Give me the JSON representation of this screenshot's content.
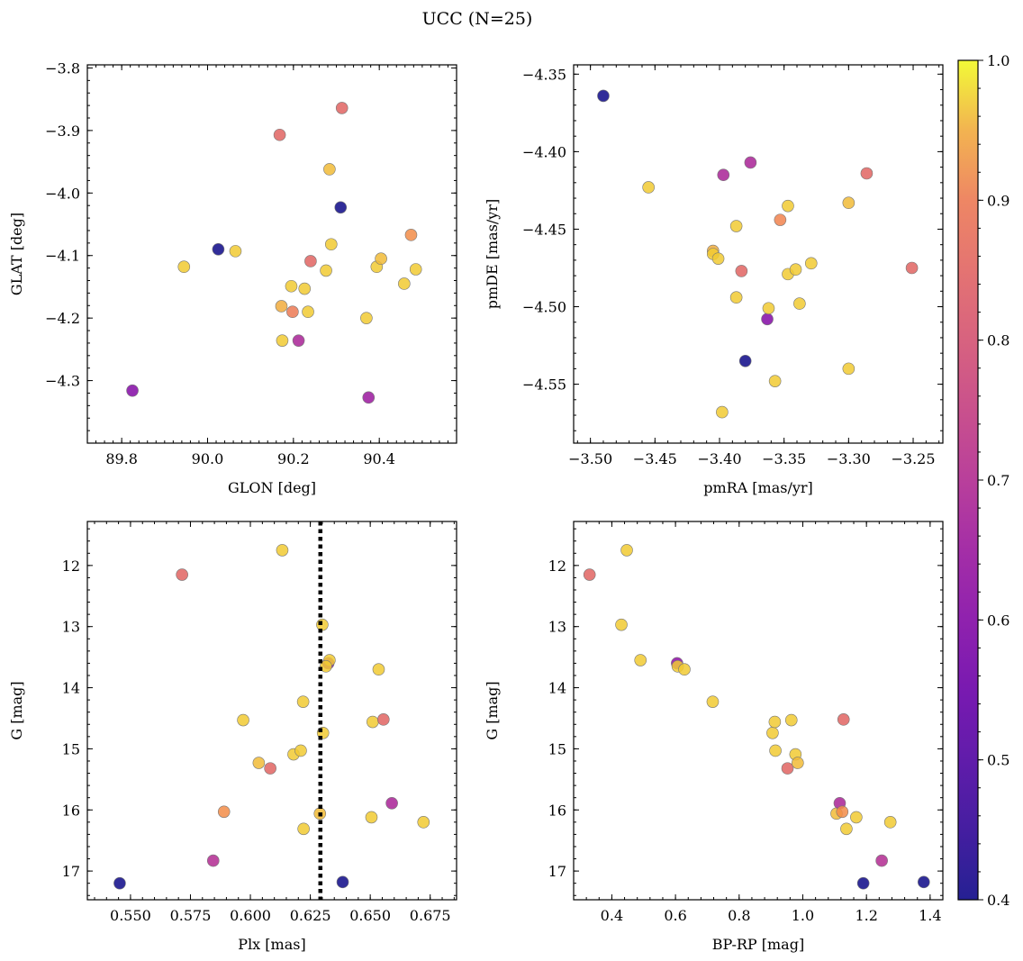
{
  "title": "UCC (N=25)",
  "colors": {
    "colormap": "plasma",
    "marker_edge": "#777777",
    "axis": "#000000",
    "median_line": "#000000"
  },
  "colorbar": {
    "range": [
      0.4,
      1.0
    ],
    "ticks": [
      "0.4",
      "0.5",
      "0.6",
      "0.7",
      "0.8",
      "0.9",
      "1.0"
    ]
  },
  "chart_data": [
    {
      "type": "scatter",
      "id": "glon-glat",
      "xlabel": "GLON [deg]",
      "ylabel": "GLAT [deg]",
      "xlim": [
        89.72,
        90.58
      ],
      "ylim": [
        -4.4,
        -3.795
      ],
      "y_inverted": false,
      "xticks": [
        {
          "v": 89.8,
          "label": "89.8"
        },
        {
          "v": 90.0,
          "label": "90.0"
        },
        {
          "v": 90.2,
          "label": "90.2"
        },
        {
          "v": 90.4,
          "label": "90.4"
        }
      ],
      "yticks": [
        {
          "v": -3.8,
          "label": "−3.8"
        },
        {
          "v": -3.9,
          "label": "−3.9"
        },
        {
          "v": -4.0,
          "label": "−4.0"
        },
        {
          "v": -4.1,
          "label": "−4.1"
        },
        {
          "v": -4.2,
          "label": "−4.2"
        },
        {
          "v": -4.3,
          "label": "−4.3"
        }
      ],
      "xminor": 0.02,
      "yminor": 0.02,
      "points": [
        {
          "x": 89.825,
          "y": -4.316,
          "c": 0.6
        },
        {
          "x": 89.945,
          "y": -4.118,
          "c": 0.97
        },
        {
          "x": 90.025,
          "y": -4.09,
          "c": 0.38
        },
        {
          "x": 90.065,
          "y": -4.093,
          "c": 0.97
        },
        {
          "x": 90.168,
          "y": -3.907,
          "c": 0.85
        },
        {
          "x": 90.172,
          "y": -4.181,
          "c": 0.95
        },
        {
          "x": 90.174,
          "y": -4.236,
          "c": 0.97
        },
        {
          "x": 90.195,
          "y": -4.149,
          "c": 0.97
        },
        {
          "x": 90.198,
          "y": -4.19,
          "c": 0.9
        },
        {
          "x": 90.212,
          "y": -4.236,
          "c": 0.68
        },
        {
          "x": 90.226,
          "y": -4.153,
          "c": 0.97
        },
        {
          "x": 90.234,
          "y": -4.19,
          "c": 0.97
        },
        {
          "x": 90.24,
          "y": -4.109,
          "c": 0.85
        },
        {
          "x": 90.276,
          "y": -4.124,
          "c": 0.97
        },
        {
          "x": 90.284,
          "y": -3.962,
          "c": 0.96
        },
        {
          "x": 90.288,
          "y": -4.082,
          "c": 0.97
        },
        {
          "x": 90.31,
          "y": -4.023,
          "c": 0.38
        },
        {
          "x": 90.313,
          "y": -3.864,
          "c": 0.85
        },
        {
          "x": 90.37,
          "y": -4.2,
          "c": 0.97
        },
        {
          "x": 90.375,
          "y": -4.327,
          "c": 0.65
        },
        {
          "x": 90.394,
          "y": -4.118,
          "c": 0.97
        },
        {
          "x": 90.404,
          "y": -4.105,
          "c": 0.96
        },
        {
          "x": 90.458,
          "y": -4.145,
          "c": 0.97
        },
        {
          "x": 90.474,
          "y": -4.067,
          "c": 0.93
        },
        {
          "x": 90.485,
          "y": -4.122,
          "c": 0.97
        }
      ]
    },
    {
      "type": "scatter",
      "id": "pmra-pmde",
      "xlabel": "pmRA [mas/yr]",
      "ylabel": "pmDE [mas/yr]",
      "xlim": [
        -3.513,
        -3.227
      ],
      "ylim": [
        -4.588,
        -4.344
      ],
      "y_inverted": false,
      "xticks": [
        {
          "v": -3.5,
          "label": "−3.50"
        },
        {
          "v": -3.45,
          "label": "−3.45"
        },
        {
          "v": -3.4,
          "label": "−3.40"
        },
        {
          "v": -3.35,
          "label": "−3.35"
        },
        {
          "v": -3.3,
          "label": "−3.30"
        },
        {
          "v": -3.25,
          "label": "−3.25"
        }
      ],
      "yticks": [
        {
          "v": -4.35,
          "label": "−4.35"
        },
        {
          "v": -4.4,
          "label": "−4.40"
        },
        {
          "v": -4.45,
          "label": "−4.45"
        },
        {
          "v": -4.5,
          "label": "−4.50"
        },
        {
          "v": -4.55,
          "label": "−4.55"
        }
      ],
      "xminor": 0.01,
      "yminor": 0.01,
      "points": [
        {
          "x": -3.49,
          "y": -4.364,
          "c": 0.38
        },
        {
          "x": -3.455,
          "y": -4.423,
          "c": 0.97
        },
        {
          "x": -3.405,
          "y": -4.464,
          "c": 0.95
        },
        {
          "x": -3.405,
          "y": -4.466,
          "c": 0.97
        },
        {
          "x": -3.401,
          "y": -4.469,
          "c": 0.97
        },
        {
          "x": -3.398,
          "y": -4.568,
          "c": 0.97
        },
        {
          "x": -3.397,
          "y": -4.415,
          "c": 0.68
        },
        {
          "x": -3.387,
          "y": -4.448,
          "c": 0.97
        },
        {
          "x": -3.387,
          "y": -4.494,
          "c": 0.97
        },
        {
          "x": -3.383,
          "y": -4.477,
          "c": 0.85
        },
        {
          "x": -3.38,
          "y": -4.535,
          "c": 0.38
        },
        {
          "x": -3.376,
          "y": -4.407,
          "c": 0.68
        },
        {
          "x": -3.363,
          "y": -4.508,
          "c": 0.6
        },
        {
          "x": -3.362,
          "y": -4.501,
          "c": 0.97
        },
        {
          "x": -3.357,
          "y": -4.548,
          "c": 0.97
        },
        {
          "x": -3.353,
          "y": -4.444,
          "c": 0.92
        },
        {
          "x": -3.347,
          "y": -4.435,
          "c": 0.97
        },
        {
          "x": -3.347,
          "y": -4.479,
          "c": 0.97
        },
        {
          "x": -3.341,
          "y": -4.476,
          "c": 0.97
        },
        {
          "x": -3.338,
          "y": -4.498,
          "c": 0.97
        },
        {
          "x": -3.329,
          "y": -4.472,
          "c": 0.97
        },
        {
          "x": -3.3,
          "y": -4.433,
          "c": 0.96
        },
        {
          "x": -3.3,
          "y": -4.54,
          "c": 0.97
        },
        {
          "x": -3.286,
          "y": -4.414,
          "c": 0.85
        },
        {
          "x": -3.251,
          "y": -4.475,
          "c": 0.85
        }
      ]
    },
    {
      "type": "scatter",
      "id": "plx-g",
      "xlabel": "Plx [mas]",
      "ylabel": "G [mag]",
      "xlim": [
        0.532,
        0.686
      ],
      "ylim": [
        11.28,
        17.47
      ],
      "y_inverted": true,
      "vline": {
        "x": 0.6292,
        "style": "dotted"
      },
      "xticks": [
        {
          "v": 0.55,
          "label": "0.550"
        },
        {
          "v": 0.575,
          "label": "0.575"
        },
        {
          "v": 0.6,
          "label": "0.600"
        },
        {
          "v": 0.625,
          "label": "0.625"
        },
        {
          "v": 0.65,
          "label": "0.650"
        },
        {
          "v": 0.675,
          "label": "0.675"
        }
      ],
      "yticks": [
        {
          "v": 12,
          "label": "12"
        },
        {
          "v": 13,
          "label": "13"
        },
        {
          "v": 14,
          "label": "14"
        },
        {
          "v": 15,
          "label": "15"
        },
        {
          "v": 16,
          "label": "16"
        },
        {
          "v": 17,
          "label": "17"
        }
      ],
      "xminor": 0.005,
      "yminor": 0.2,
      "points": [
        {
          "x": 0.5455,
          "y": 17.2,
          "c": 0.38
        },
        {
          "x": 0.5715,
          "y": 12.15,
          "c": 0.85
        },
        {
          "x": 0.5845,
          "y": 16.83,
          "c": 0.7
        },
        {
          "x": 0.589,
          "y": 16.03,
          "c": 0.93
        },
        {
          "x": 0.597,
          "y": 14.53,
          "c": 0.97
        },
        {
          "x": 0.6035,
          "y": 15.23,
          "c": 0.96
        },
        {
          "x": 0.6083,
          "y": 15.32,
          "c": 0.85
        },
        {
          "x": 0.6133,
          "y": 11.75,
          "c": 0.97
        },
        {
          "x": 0.618,
          "y": 15.09,
          "c": 0.97
        },
        {
          "x": 0.621,
          "y": 15.03,
          "c": 0.97
        },
        {
          "x": 0.622,
          "y": 14.23,
          "c": 0.97
        },
        {
          "x": 0.6222,
          "y": 16.31,
          "c": 0.97
        },
        {
          "x": 0.629,
          "y": 16.06,
          "c": 0.96
        },
        {
          "x": 0.63,
          "y": 12.97,
          "c": 0.97
        },
        {
          "x": 0.6303,
          "y": 14.74,
          "c": 0.97
        },
        {
          "x": 0.6325,
          "y": 13.6,
          "c": 0.62
        },
        {
          "x": 0.633,
          "y": 13.55,
          "c": 0.97
        },
        {
          "x": 0.6315,
          "y": 13.65,
          "c": 0.97
        },
        {
          "x": 0.6385,
          "y": 17.18,
          "c": 0.38
        },
        {
          "x": 0.6505,
          "y": 16.12,
          "c": 0.97
        },
        {
          "x": 0.651,
          "y": 14.56,
          "c": 0.97
        },
        {
          "x": 0.6535,
          "y": 13.7,
          "c": 0.97
        },
        {
          "x": 0.6555,
          "y": 14.52,
          "c": 0.85
        },
        {
          "x": 0.659,
          "y": 15.89,
          "c": 0.68
        },
        {
          "x": 0.6722,
          "y": 16.2,
          "c": 0.97
        }
      ]
    },
    {
      "type": "scatter",
      "id": "bprp-g",
      "xlabel": "BP-RP [mag]",
      "ylabel": "G [mag]",
      "xlim": [
        0.28,
        1.44
      ],
      "ylim": [
        11.28,
        17.47
      ],
      "y_inverted": true,
      "xticks": [
        {
          "v": 0.4,
          "label": "0.4"
        },
        {
          "v": 0.6,
          "label": "0.6"
        },
        {
          "v": 0.8,
          "label": "0.8"
        },
        {
          "v": 1.0,
          "label": "1.0"
        },
        {
          "v": 1.2,
          "label": "1.2"
        },
        {
          "v": 1.4,
          "label": "1.4"
        }
      ],
      "yticks": [
        {
          "v": 12,
          "label": "12"
        },
        {
          "v": 13,
          "label": "13"
        },
        {
          "v": 14,
          "label": "14"
        },
        {
          "v": 15,
          "label": "15"
        },
        {
          "v": 16,
          "label": "16"
        },
        {
          "v": 17,
          "label": "17"
        }
      ],
      "xminor": 0.04,
      "yminor": 0.2,
      "points": [
        {
          "x": 0.33,
          "y": 12.15,
          "c": 0.85
        },
        {
          "x": 0.43,
          "y": 12.97,
          "c": 0.97
        },
        {
          "x": 0.447,
          "y": 11.75,
          "c": 0.97
        },
        {
          "x": 0.49,
          "y": 13.55,
          "c": 0.97
        },
        {
          "x": 0.605,
          "y": 13.6,
          "c": 0.62
        },
        {
          "x": 0.607,
          "y": 13.65,
          "c": 0.97
        },
        {
          "x": 0.628,
          "y": 13.7,
          "c": 0.97
        },
        {
          "x": 0.717,
          "y": 14.23,
          "c": 0.97
        },
        {
          "x": 0.905,
          "y": 14.74,
          "c": 0.97
        },
        {
          "x": 0.912,
          "y": 14.56,
          "c": 0.97
        },
        {
          "x": 0.914,
          "y": 15.03,
          "c": 0.97
        },
        {
          "x": 0.952,
          "y": 15.32,
          "c": 0.85
        },
        {
          "x": 0.964,
          "y": 14.53,
          "c": 0.97
        },
        {
          "x": 0.977,
          "y": 15.09,
          "c": 0.97
        },
        {
          "x": 0.984,
          "y": 15.23,
          "c": 0.96
        },
        {
          "x": 1.106,
          "y": 16.06,
          "c": 0.96
        },
        {
          "x": 1.116,
          "y": 15.89,
          "c": 0.68
        },
        {
          "x": 1.124,
          "y": 16.03,
          "c": 0.93
        },
        {
          "x": 1.128,
          "y": 14.52,
          "c": 0.85
        },
        {
          "x": 1.137,
          "y": 16.31,
          "c": 0.97
        },
        {
          "x": 1.168,
          "y": 16.12,
          "c": 0.97
        },
        {
          "x": 1.19,
          "y": 17.2,
          "c": 0.38
        },
        {
          "x": 1.248,
          "y": 16.83,
          "c": 0.7
        },
        {
          "x": 1.275,
          "y": 16.2,
          "c": 0.97
        },
        {
          "x": 1.38,
          "y": 17.18,
          "c": 0.38
        }
      ]
    }
  ]
}
